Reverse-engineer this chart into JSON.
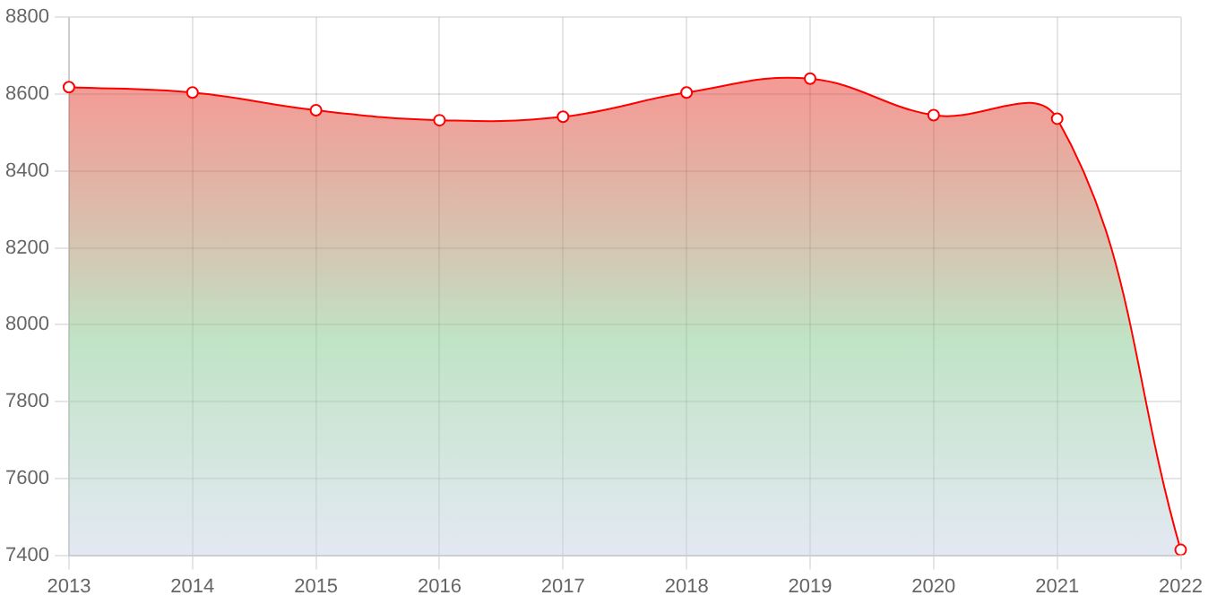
{
  "chart_data": {
    "type": "area",
    "categories": [
      "2013",
      "2014",
      "2015",
      "2016",
      "2017",
      "2018",
      "2019",
      "2020",
      "2021",
      "2022"
    ],
    "series": [
      {
        "color": "#ff0000",
        "values": [
          8618,
          8604,
          8558,
          8532,
          8541,
          8604,
          8640,
          8545,
          8536,
          7414
        ]
      }
    ],
    "ylim": [
      7400,
      8800
    ],
    "yticks": [
      7400,
      7600,
      7800,
      8000,
      8200,
      8400,
      8600,
      8800
    ],
    "grid": true,
    "legend": false,
    "marker": "circle",
    "line_style": "solid"
  }
}
